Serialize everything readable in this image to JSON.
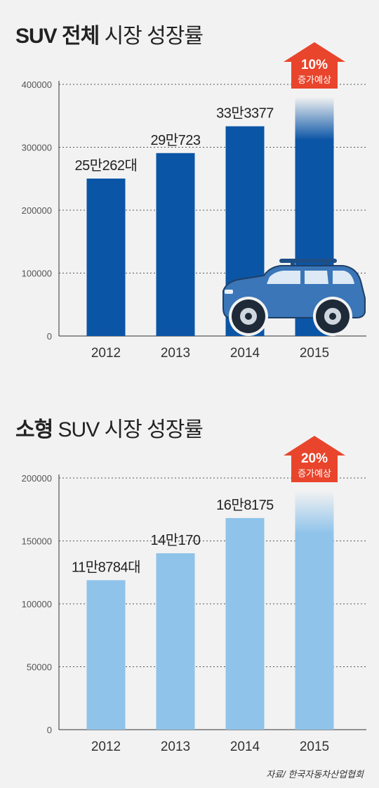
{
  "charts": {
    "chart_data": [
      {
        "type": "bar",
        "title_bold": "SUV 전체",
        "title_light": "시장 성장률",
        "categories": [
          "2012",
          "2013",
          "2014",
          "2015"
        ],
        "values": [
          250262,
          290723,
          333377,
          380000
        ],
        "data_labels": [
          "25만262대",
          "29만723",
          "33만3377",
          ""
        ],
        "yticks": [
          0,
          100000,
          200000,
          300000,
          400000
        ],
        "ytick_labels": [
          "0",
          "100000",
          "200000",
          "300000",
          "400000"
        ],
        "ylim": [
          0,
          400000
        ],
        "callout": {
          "percent": "10%",
          "text": "증가예상"
        },
        "bar_color": "#0b55a6",
        "has_car": true
      },
      {
        "type": "bar",
        "title_bold": "소형",
        "title_light": "SUV 시장 성장률",
        "categories": [
          "2012",
          "2013",
          "2014",
          "2015"
        ],
        "values": [
          118784,
          140170,
          168175,
          205000
        ],
        "data_labels": [
          "11만8784대",
          "14만170",
          "16만8175",
          ""
        ],
        "yticks": [
          0,
          50000,
          100000,
          150000,
          200000
        ],
        "ytick_labels": [
          "0",
          "50000",
          "100000",
          "150000",
          "200000"
        ],
        "ylim": [
          0,
          200000
        ],
        "callout": {
          "percent": "20%",
          "text": "증가예상"
        },
        "bar_color": "#8fc3ea",
        "has_car": false
      }
    ]
  },
  "source": "자료/ 한국자동차산업협회",
  "colors": {
    "callout": "#e8452c",
    "grid": "#555555"
  }
}
